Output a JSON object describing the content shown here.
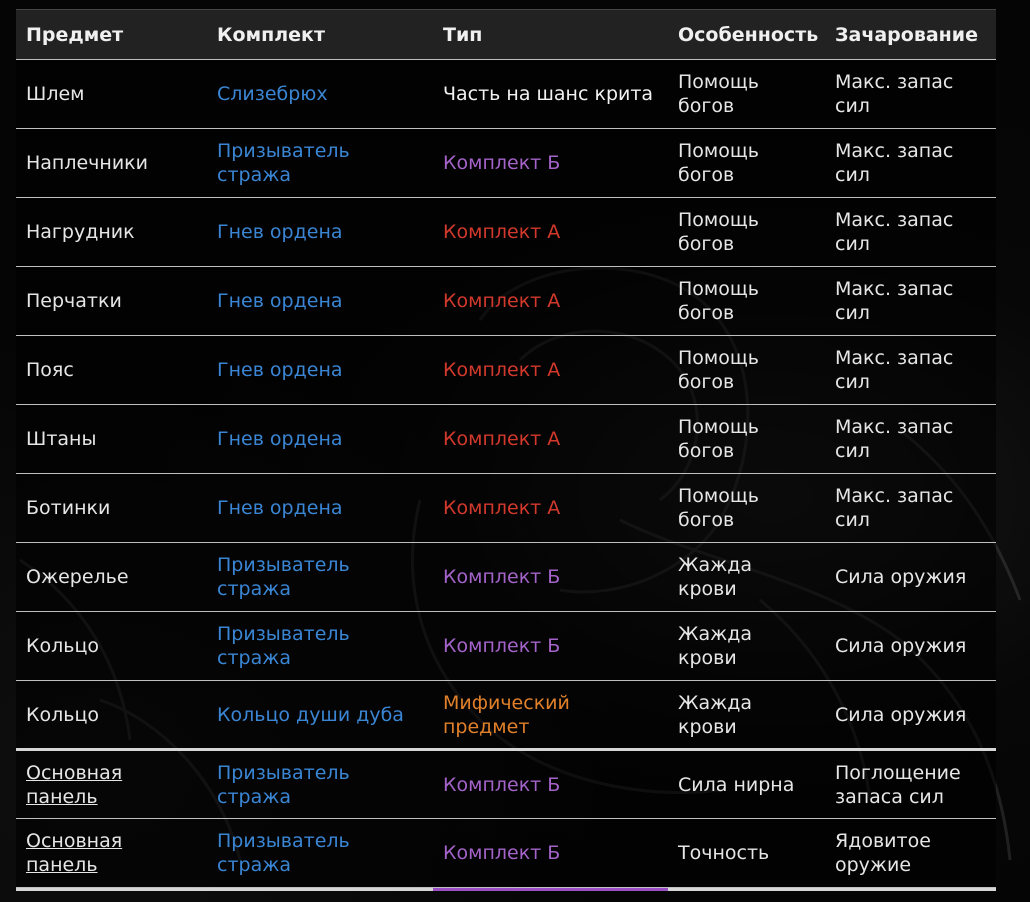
{
  "headers": [
    "Предмет",
    "Комплект",
    "Тип",
    "Особенность",
    "Зачарование"
  ],
  "rows": [
    {
      "item": "Шлем",
      "set": "Слизебрюх",
      "type": "Часть на шанс крита",
      "type_style": "white",
      "trait": "Помощь богов",
      "enchant": "Макс. запас сил"
    },
    {
      "item": "Наплечники",
      "set": "Призыватель стража",
      "type": "Комплект Б",
      "type_style": "b",
      "trait": "Помощь богов",
      "enchant": "Макс. запас сил"
    },
    {
      "item": "Нагрудник",
      "set": "Гнев ордена",
      "type": "Комплект А",
      "type_style": "a",
      "trait": "Помощь богов",
      "enchant": "Макс. запас сил"
    },
    {
      "item": "Перчатки",
      "set": "Гнев ордена",
      "type": "Комплект А",
      "type_style": "a",
      "trait": "Помощь богов",
      "enchant": "Макс. запас сил"
    },
    {
      "item": "Пояс",
      "set": "Гнев ордена",
      "type": "Комплект А",
      "type_style": "a",
      "trait": "Помощь богов",
      "enchant": "Макс. запас сил"
    },
    {
      "item": "Штаны",
      "set": "Гнев ордена",
      "type": "Комплект А",
      "type_style": "a",
      "trait": "Помощь богов",
      "enchant": "Макс. запас сил"
    },
    {
      "item": "Ботинки",
      "set": "Гнев ордена",
      "type": "Комплект А",
      "type_style": "a",
      "trait": "Помощь богов",
      "enchant": "Макс. запас сил"
    },
    {
      "item": "Ожерелье",
      "set": "Призыватель стража",
      "type": "Комплект Б",
      "type_style": "b",
      "trait": "Жажда крови",
      "enchant": "Сила оружия"
    },
    {
      "item": "Кольцо",
      "set": "Призыватель стража",
      "type": "Комплект Б",
      "type_style": "b",
      "trait": "Жажда крови",
      "enchant": "Сила оружия"
    },
    {
      "item": "Кольцо",
      "set": "Кольцо души дуба",
      "type": "Мифический предмет",
      "type_style": "myth",
      "trait": "Жажда крови",
      "enchant": "Сила оружия"
    },
    {
      "item": "Основная панель",
      "item_link": true,
      "set": "Призыватель стража",
      "type": "Комплект Б",
      "type_style": "b",
      "trait": "Сила нирна",
      "enchant": "Поглощение запаса сил",
      "divider": true
    },
    {
      "item": "Основная панель",
      "item_link": true,
      "set": "Призыватель стража",
      "type": "Комплект Б",
      "type_style": "b",
      "trait": "Точность",
      "enchant": "Ядовитое оружие"
    }
  ],
  "colors": {
    "set_link": "#3a86d4",
    "type_b": "#a463c9",
    "type_a": "#d2392c",
    "type_myth": "#e0802a",
    "type_white": "#f2f2f2"
  }
}
